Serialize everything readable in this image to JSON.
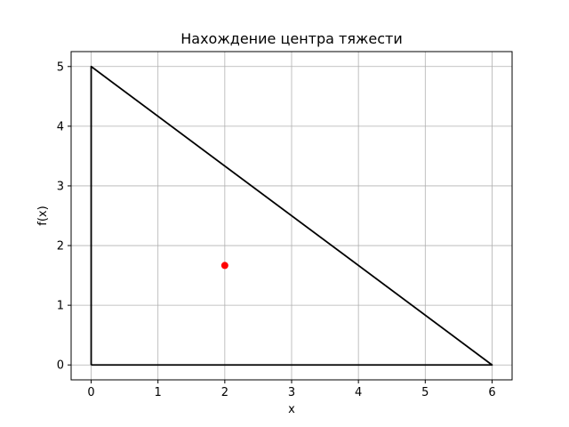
{
  "chart_data": {
    "type": "line",
    "title": "Нахождение центра тяжести",
    "xlabel": "x",
    "ylabel": "f(x)",
    "xlim": [
      -0.3,
      6.3
    ],
    "ylim": [
      -0.25,
      5.25
    ],
    "xticks": [
      0,
      1,
      2,
      3,
      4,
      5,
      6
    ],
    "yticks": [
      0,
      1,
      2,
      3,
      4,
      5
    ],
    "grid": true,
    "series": [
      {
        "type": "line",
        "color": "#000000",
        "points": [
          [
            0,
            0
          ],
          [
            0,
            5
          ],
          [
            6,
            0
          ],
          [
            0,
            0
          ]
        ]
      },
      {
        "type": "scatter",
        "color": "#ff0000",
        "points": [
          [
            2,
            1.6667
          ]
        ]
      }
    ]
  }
}
